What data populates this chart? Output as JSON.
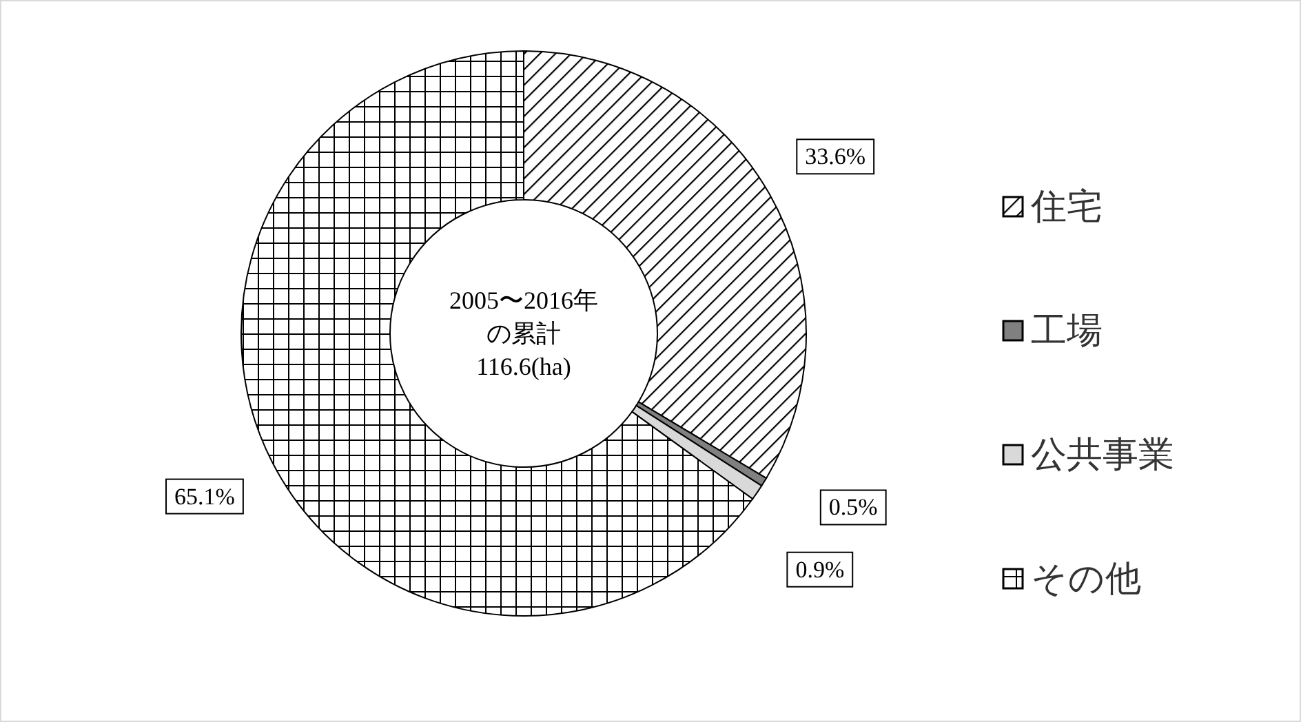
{
  "chart_data": {
    "type": "donut",
    "categories": [
      "住宅",
      "工場",
      "公共事業",
      "その他"
    ],
    "values": [
      33.6,
      0.5,
      0.9,
      65.1
    ],
    "colors": [
      "#000000",
      "#808080",
      "#d9d9d9",
      "#000000"
    ],
    "value_labels": [
      "33.6%",
      "0.5%",
      "0.9%",
      "65.1%"
    ],
    "annotations": [
      "2005〜2016年",
      "の累計",
      "116.6(ha)"
    ],
    "legend": "right"
  }
}
